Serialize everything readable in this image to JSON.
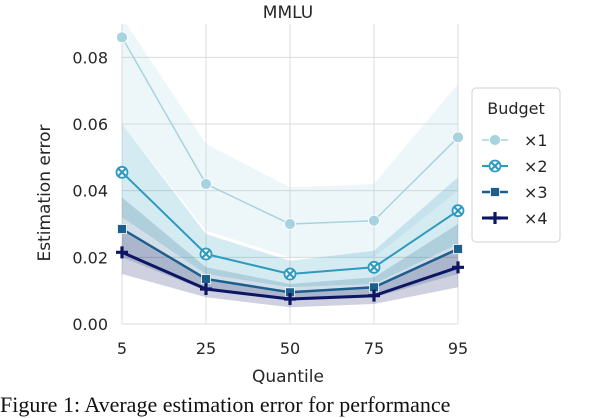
{
  "caption": "Figure 1:  Average estimation error for performance",
  "chart_data": {
    "type": "line",
    "title": "MMLU",
    "xlabel": "Quantile",
    "ylabel": "Estimation error",
    "categories": [
      "5",
      "25",
      "50",
      "75",
      "95"
    ],
    "ylim": [
      0,
      0.09
    ],
    "yticks": [
      "0.00",
      "0.02",
      "0.04",
      "0.06",
      "0.08"
    ],
    "grid": true,
    "legend": {
      "title": "Budget",
      "placement": "right"
    },
    "series": [
      {
        "name": "×1",
        "color": "#a7d3e0",
        "marker": "circle",
        "linewidth": 1.5,
        "values": [
          0.086,
          0.042,
          0.03,
          0.031,
          0.056
        ],
        "lower": [
          0.06,
          0.028,
          0.02,
          0.02,
          0.04
        ],
        "upper": [
          0.092,
          0.054,
          0.041,
          0.042,
          0.072
        ]
      },
      {
        "name": "×2",
        "color": "#2f9abf",
        "marker": "x-circle",
        "linewidth": 2,
        "values": [
          0.0455,
          0.021,
          0.015,
          0.017,
          0.034
        ],
        "lower": [
          0.032,
          0.015,
          0.011,
          0.012,
          0.024
        ],
        "upper": [
          0.06,
          0.027,
          0.019,
          0.022,
          0.044
        ]
      },
      {
        "name": "×3",
        "color": "#1c5f8e",
        "marker": "square",
        "linewidth": 2.5,
        "values": [
          0.0285,
          0.0135,
          0.0095,
          0.011,
          0.0225
        ],
        "lower": [
          0.02,
          0.01,
          0.007,
          0.008,
          0.015
        ],
        "upper": [
          0.038,
          0.017,
          0.012,
          0.014,
          0.03
        ]
      },
      {
        "name": "×4",
        "color": "#0d1663",
        "marker": "plus",
        "linewidth": 3,
        "values": [
          0.0215,
          0.0105,
          0.0075,
          0.0085,
          0.017
        ],
        "lower": [
          0.015,
          0.008,
          0.005,
          0.006,
          0.011
        ],
        "upper": [
          0.028,
          0.013,
          0.01,
          0.011,
          0.023
        ]
      }
    ]
  }
}
